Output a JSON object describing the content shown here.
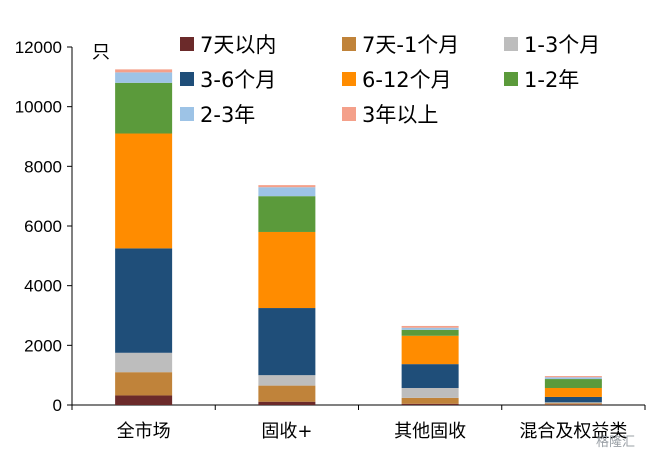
{
  "chart_data": {
    "type": "bar",
    "stacked": true,
    "ylabel": "只",
    "ylim": [
      0,
      12000
    ],
    "yticks": [
      0,
      2000,
      4000,
      6000,
      8000,
      10000,
      12000
    ],
    "categories": [
      "全市场",
      "固收+",
      "其他固收",
      "混合及权益类"
    ],
    "series": [
      {
        "name": "7天以内",
        "color": "#6b2a2a",
        "values": [
          320,
          110,
          40,
          20
        ]
      },
      {
        "name": "7天-1个月",
        "color": "#c0833a",
        "values": [
          780,
          540,
          200,
          40
        ]
      },
      {
        "name": "1-3个月",
        "color": "#bdbdbd",
        "values": [
          650,
          350,
          330,
          30
        ]
      },
      {
        "name": "3-6个月",
        "color": "#1f4e79",
        "values": [
          3500,
          2250,
          800,
          180
        ]
      },
      {
        "name": "6-12个月",
        "color": "#ff8c00",
        "values": [
          3850,
          2550,
          950,
          300
        ]
      },
      {
        "name": "1-2年",
        "color": "#5b9a3b",
        "values": [
          1700,
          1200,
          200,
          300
        ]
      },
      {
        "name": "2-3年",
        "color": "#9dc3e6",
        "values": [
          350,
          300,
          70,
          60
        ]
      },
      {
        "name": "3年以上",
        "color": "#f4a08a",
        "values": [
          100,
          70,
          60,
          40
        ]
      }
    ],
    "legend_position": "top-right"
  },
  "watermark": "格隆汇"
}
